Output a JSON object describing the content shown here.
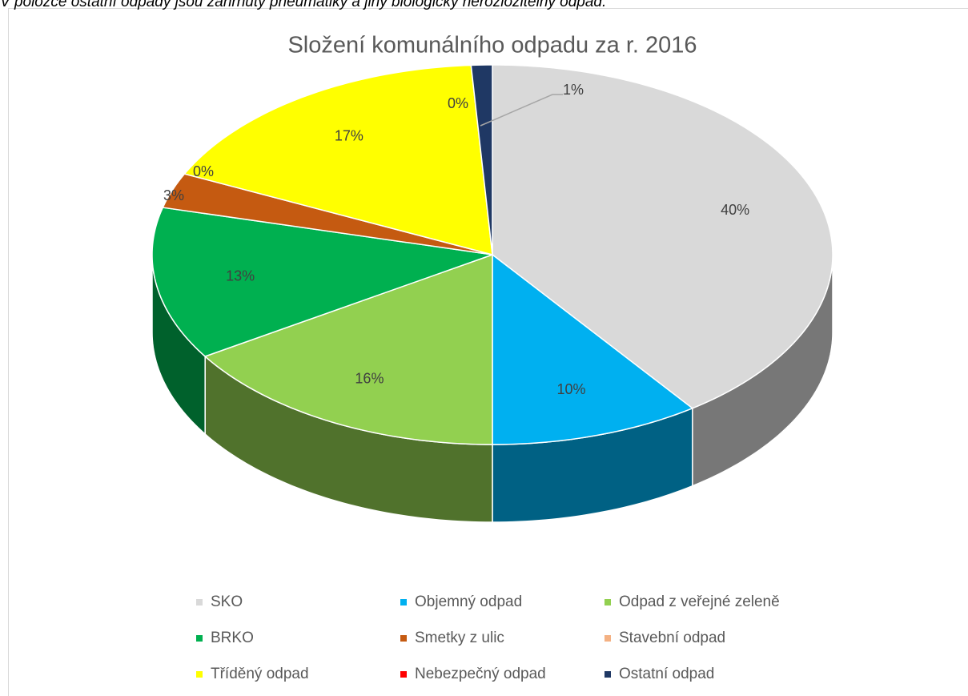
{
  "note_text": "V položce ostatní odpady jsou zahrnuty pneumatiky a jiný biologicky nerozložitelný odpad.",
  "chart_data": {
    "type": "pie",
    "title": "Složení komunálního odpadu za r. 2016",
    "categories": [
      "SKO",
      "Objemný odpad",
      "Odpad z veřejné zeleně",
      "BRKO",
      "Smetky z ulic",
      "Stavební odpad",
      "Tříděný odpad",
      "Nebezpečný odpad",
      "Ostatní odpad"
    ],
    "values": [
      40,
      10,
      16,
      13,
      3,
      0,
      17,
      0,
      1
    ],
    "value_labels": [
      "40%",
      "10%",
      "16%",
      "13%",
      "3%",
      "0%",
      "17%",
      "0%",
      "1%"
    ],
    "colors": [
      "#d9d9d9",
      "#00b0f0",
      "#92d050",
      "#00b050",
      "#c55a11",
      "#f4b183",
      "#ffff00",
      "#ff0000",
      "#1f3864"
    ],
    "legend": "bottom"
  }
}
